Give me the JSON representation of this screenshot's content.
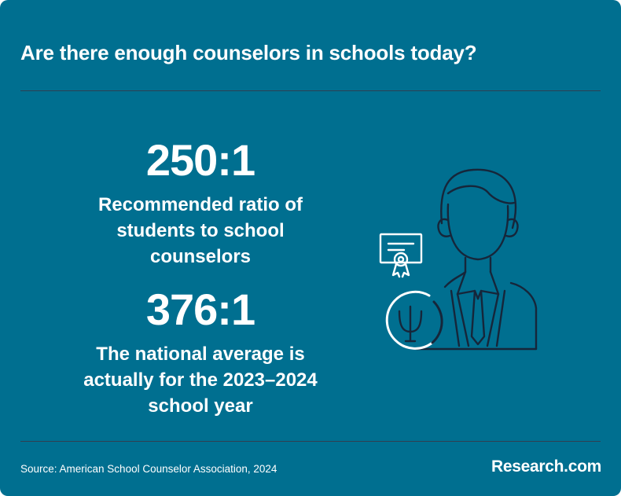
{
  "header": {
    "title": "Are there enough counselors in schools today?"
  },
  "stats": [
    {
      "value": "250:1",
      "description": "Recommended ratio of students to school counselors"
    },
    {
      "value": "376:1",
      "description": "The national average is actually for the 2023–2024 school year"
    }
  ],
  "illustration": {
    "icons": [
      "counselor-person-icon",
      "certificate-icon",
      "psi-symbol-icon"
    ],
    "psi_glyph": "Ψ"
  },
  "footer": {
    "source": "Source: American School Counselor Association, 2024",
    "logo": "Research.com"
  },
  "colors": {
    "background": "#006f90",
    "text": "#ffffff",
    "divider": "#2f3f52",
    "icon_stroke": "#16263a",
    "icon_highlight": "#ffffff"
  }
}
